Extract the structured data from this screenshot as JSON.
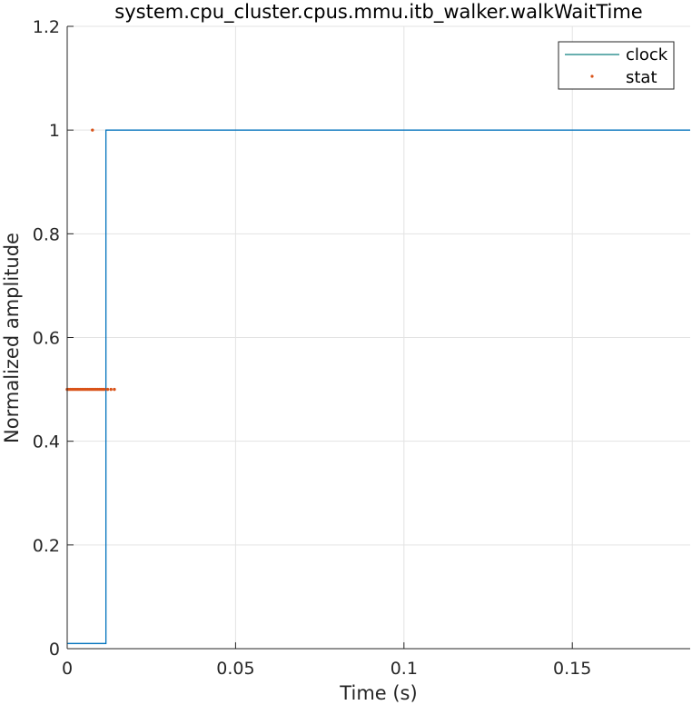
{
  "chart_data": {
    "type": "line",
    "title": "system.cpu_cluster.cpus.mmu.itb_walker.walkWaitTime",
    "xlabel": "Time (s)",
    "ylabel": "Normalized amplitude",
    "xlim": [
      0,
      0.185
    ],
    "ylim": [
      0,
      1.2
    ],
    "xticks": [
      0,
      0.05,
      0.1,
      0.15
    ],
    "xtick_labels": [
      "0",
      "0.05",
      "0.1",
      "0.15"
    ],
    "yticks": [
      0,
      0.2,
      0.4,
      0.6,
      0.8,
      1,
      1.2
    ],
    "ytick_labels": [
      "0",
      "0.2",
      "0.4",
      "0.6",
      "0.8",
      "1",
      "1.2"
    ],
    "grid": true,
    "legend_position": "top-right",
    "series": [
      {
        "name": "clock",
        "style": "line",
        "color": "#0072BD",
        "legend_color": "#0F7F7F",
        "x": [
          0,
          0.0115,
          0.0115,
          0.185
        ],
        "y": [
          0.01,
          0.01,
          1,
          1
        ]
      },
      {
        "name": "stat",
        "style": "points",
        "color": "#D95319",
        "x": [
          0.0,
          0.0005,
          0.001,
          0.0015,
          0.002,
          0.0025,
          0.003,
          0.0035,
          0.004,
          0.0045,
          0.005,
          0.0055,
          0.006,
          0.0065,
          0.007,
          0.0075,
          0.008,
          0.0085,
          0.009,
          0.0095,
          0.01,
          0.0105,
          0.011,
          0.012,
          0.013,
          0.014,
          0.0075
        ],
        "y": [
          0.5,
          0.5,
          0.5,
          0.5,
          0.5,
          0.5,
          0.5,
          0.5,
          0.5,
          0.5,
          0.5,
          0.5,
          0.5,
          0.5,
          0.5,
          0.5,
          0.5,
          0.5,
          0.5,
          0.5,
          0.5,
          0.5,
          0.5,
          0.5,
          0.5,
          0.5,
          1.0
        ]
      }
    ]
  }
}
